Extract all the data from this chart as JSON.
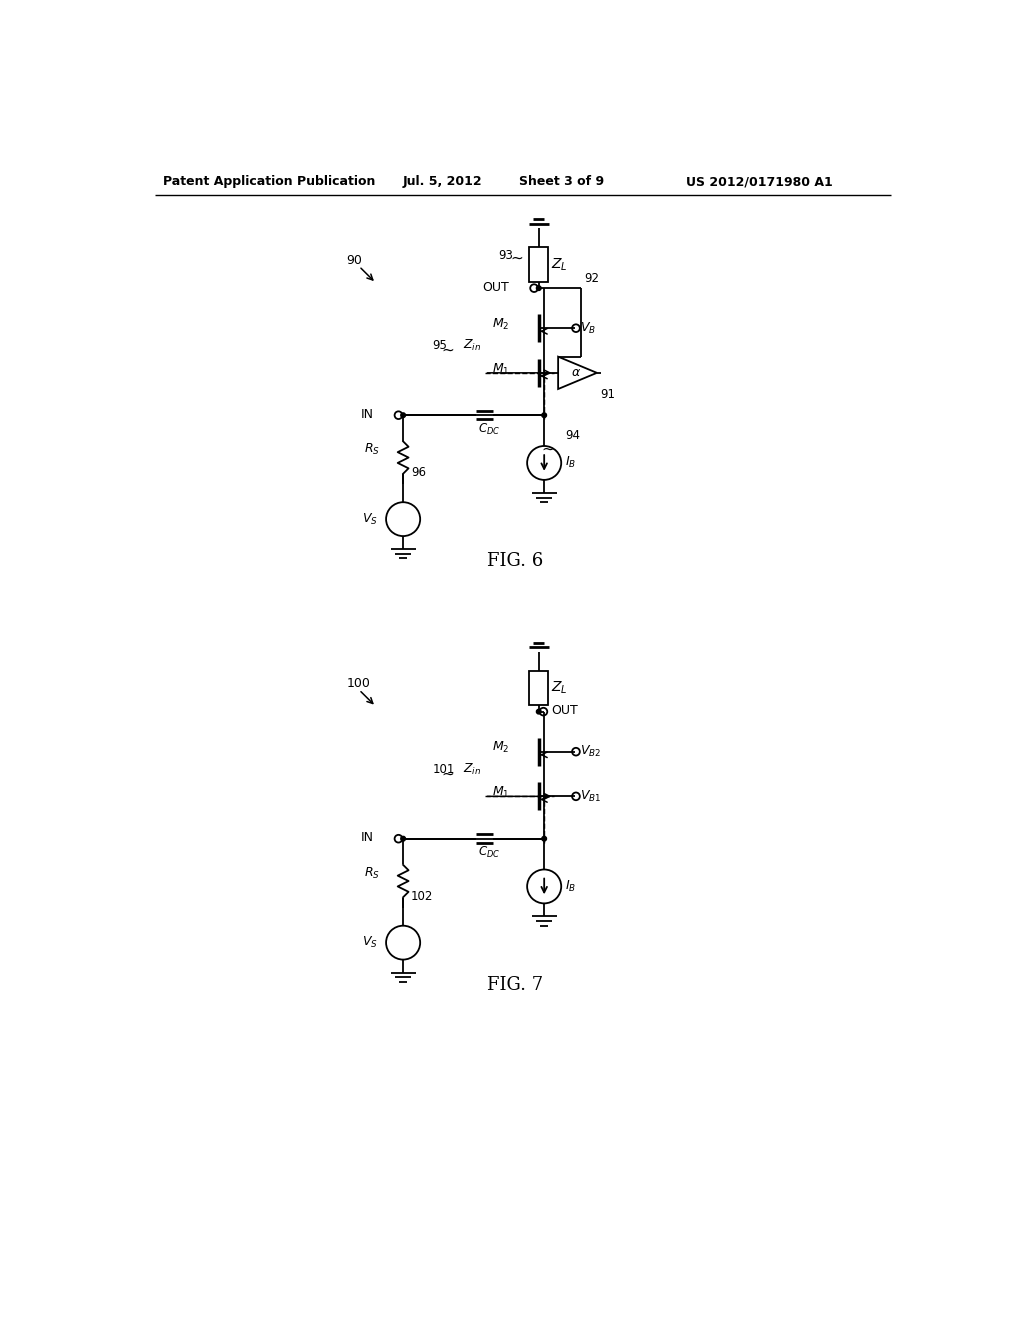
{
  "page_width": 10.24,
  "page_height": 13.2,
  "bg_color": "#ffffff",
  "line_color": "#000000",
  "header_text": "Patent Application Publication",
  "header_date": "Jul. 5, 2012",
  "header_sheet": "Sheet 3 of 9",
  "header_patent": "US 2012/0171980 A1",
  "fig6_label": "FIG. 6",
  "fig7_label": "FIG. 7"
}
